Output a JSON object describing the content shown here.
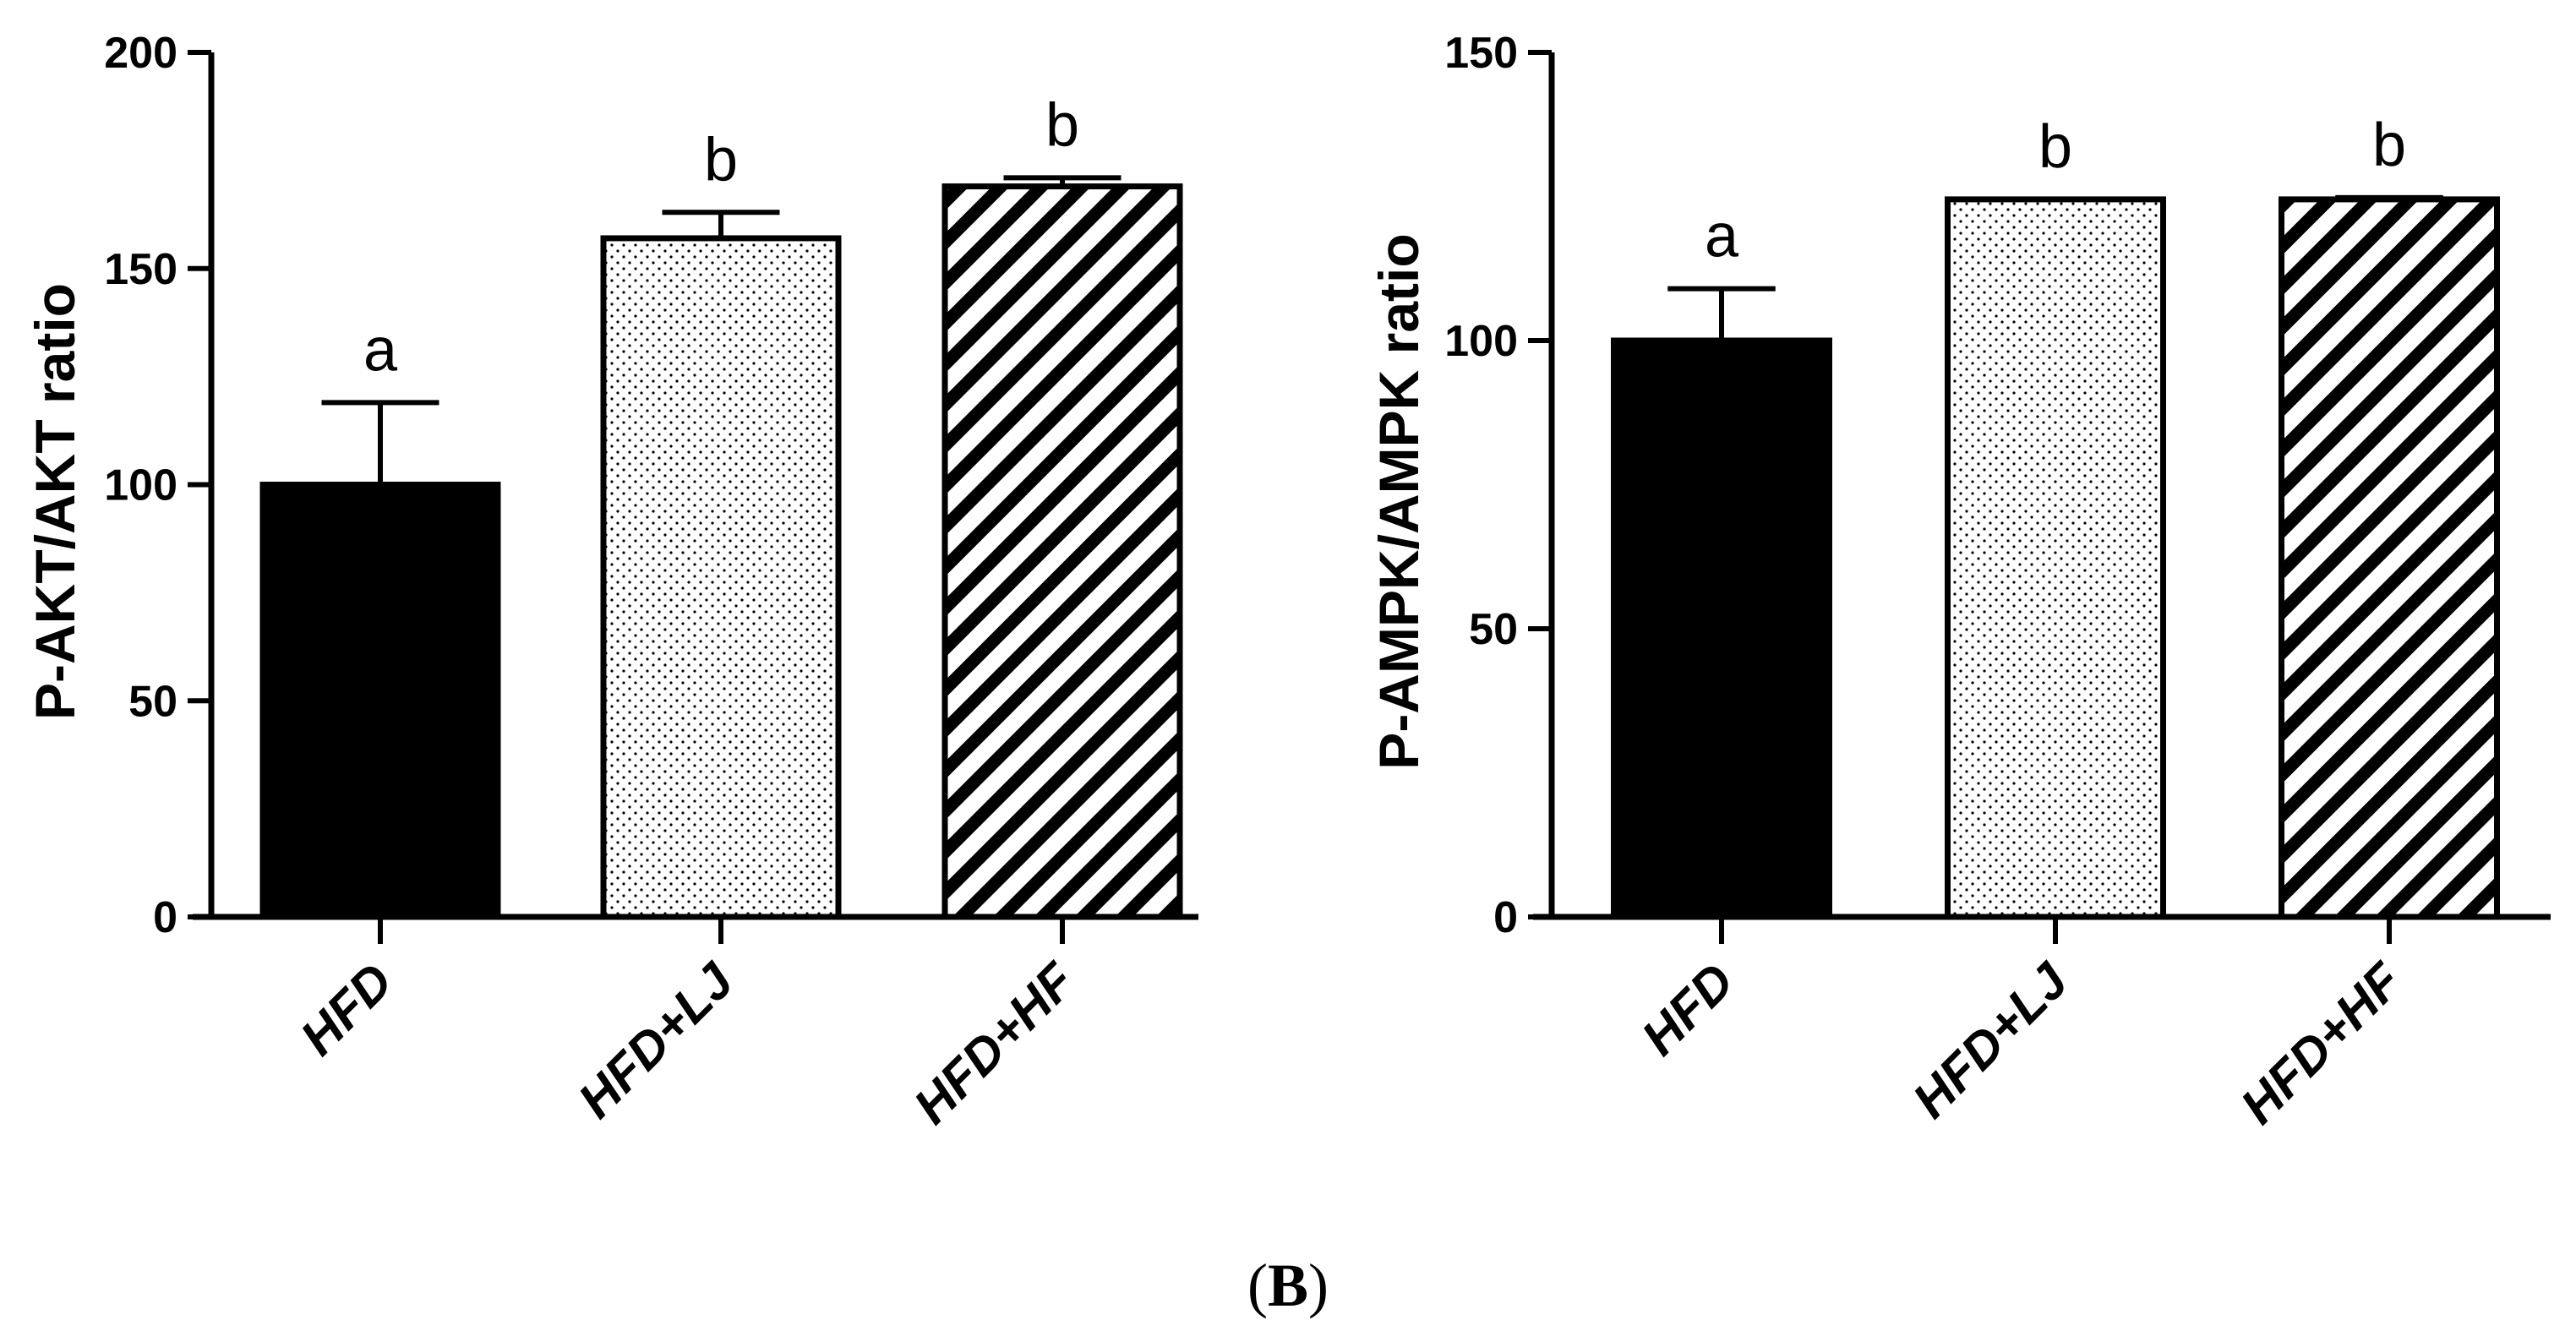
{
  "panel_label": {
    "open": "(",
    "letter": "B",
    "close": ")"
  },
  "chart_data": [
    {
      "type": "bar",
      "ylabel": "P-AKT/AKT ratio",
      "ylim": [
        0,
        200
      ],
      "yticks": [
        0,
        50,
        100,
        150,
        200
      ],
      "categories": [
        "HFD",
        "HFD+LJ",
        "HFD+HF"
      ],
      "values": [
        100,
        157,
        169
      ],
      "errors": [
        19,
        6,
        2
      ],
      "significance": [
        "a",
        "b",
        "b"
      ],
      "fills": [
        "solid-black",
        "stipple",
        "diagonal-hatch"
      ],
      "grid": false
    },
    {
      "type": "bar",
      "ylabel": "P-AMPK/AMPK ratio",
      "ylim": [
        0,
        150
      ],
      "yticks": [
        0,
        50,
        100,
        150
      ],
      "categories": [
        "HFD",
        "HFD+LJ",
        "HFD+HF"
      ],
      "values": [
        100,
        124.5,
        124.5
      ],
      "errors": [
        9,
        0,
        0.3
      ],
      "significance": [
        "a",
        "b",
        "b"
      ],
      "fills": [
        "solid-black",
        "stipple",
        "diagonal-hatch"
      ],
      "grid": false
    }
  ]
}
